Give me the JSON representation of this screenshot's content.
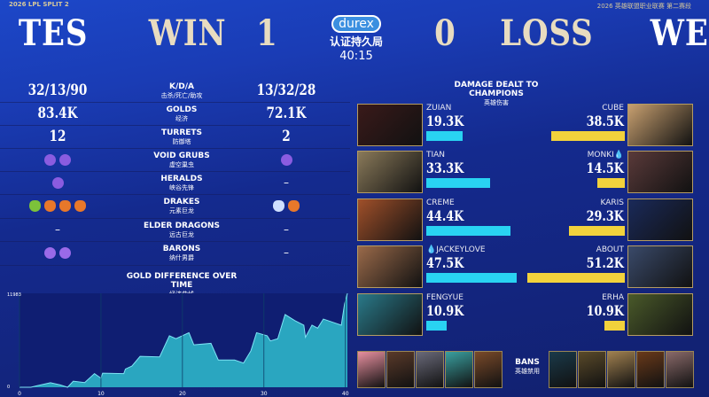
{
  "header": {
    "split": "2026 LPL SPLIT 2",
    "league": "2026 英雄联盟职业联赛 第二赛段",
    "left_team": "TES",
    "left_result": "WIN",
    "left_score": "1",
    "right_score": "0",
    "right_result": "LOSS",
    "right_team": "WE",
    "sponsor": "durex",
    "sponsor_sub": "认证持久局",
    "game_time": "40:15"
  },
  "stats": [
    {
      "label": "K/D/A",
      "sub": "击杀/死亡/助攻",
      "left": "32/13/90",
      "right": "13/32/28"
    },
    {
      "label": "GOLDS",
      "sub": "经济",
      "left": "83.4K",
      "right": "72.1K"
    },
    {
      "label": "TURRETS",
      "sub": "防御塔",
      "left": "12",
      "right": "2"
    },
    {
      "label": "VOID GRUBS",
      "sub": "虚空巢虫",
      "left_icons": [
        "void-grub",
        "void-grub"
      ],
      "right_icons": [
        "void-grub"
      ]
    },
    {
      "label": "HERALDS",
      "sub": "峡谷先锋",
      "left_icons": [
        "herald"
      ],
      "right": "–"
    },
    {
      "label": "DRAKES",
      "sub": "元素巨龙",
      "left_icons": [
        "chemtech-drake",
        "infernal-drake",
        "infernal-drake",
        "infernal-drake"
      ],
      "right_icons": [
        "hextech-drake",
        "infernal-drake"
      ]
    },
    {
      "label": "ELDER DRAGONS",
      "sub": "远古巨龙",
      "left": "–",
      "right": "–"
    },
    {
      "label": "BARONS",
      "sub": "纳什男爵",
      "left_icons": [
        "baron",
        "baron"
      ],
      "right": "–"
    }
  ],
  "icon_colors": {
    "void-grub": "#8a5ce0",
    "herald": "#8a5ce0",
    "baron": "#9a6ae8",
    "chemtech-drake": "#7cc23a",
    "infernal-drake": "#e8782a",
    "hextech-drake": "#cfe0ff"
  },
  "chart_data": {
    "type": "area",
    "title": "GOLD DIFFERENCE OVER TIME",
    "subtitle": "经济曲线",
    "xlim": [
      0,
      40.25
    ],
    "ylim": [
      0,
      11983
    ],
    "xticks": [
      "0",
      "10",
      "20",
      "30",
      "40"
    ],
    "yticks": [
      "0",
      "11983"
    ],
    "grid": false,
    "color": "#2aa6c0",
    "x": [
      0,
      1.4,
      2,
      3.8,
      5,
      5.9,
      6.6,
      8,
      9.2,
      10,
      10.2,
      12.8,
      13,
      13.8,
      14.8,
      17.2,
      18.4,
      19.2,
      20.8,
      21.4,
      23.5,
      24.4,
      26.4,
      27.5,
      28.4,
      29.1,
      30.4,
      30.8,
      31.7,
      32.6,
      33.8,
      34.9,
      35.1,
      35.9,
      36.6,
      37.3,
      39.5,
      39.9,
      40.25
    ],
    "y": [
      0,
      0,
      150,
      580,
      300,
      0,
      770,
      600,
      1740,
      1160,
      1800,
      1740,
      2320,
      2700,
      3940,
      3870,
      6570,
      6190,
      6960,
      5410,
      5600,
      3480,
      3480,
      3090,
      4640,
      6960,
      6570,
      5910,
      6190,
      9280,
      8500,
      7920,
      6380,
      7920,
      7540,
      8700,
      7920,
      10630,
      11983
    ]
  },
  "damage": {
    "title": "DAMAGE DEALT TO CHAMPIONS",
    "sub": "英雄伤害",
    "max": 51.2,
    "left": [
      {
        "name": "ZUIAN",
        "value": "19.3K",
        "num": 19.3
      },
      {
        "name": "TIAN",
        "value": "33.3K",
        "num": 33.3
      },
      {
        "name": "CREME",
        "value": "44.4K",
        "num": 44.4
      },
      {
        "name": "💧JACKEYLOVE",
        "value": "47.5K",
        "num": 47.5
      },
      {
        "name": "FENGYUE",
        "value": "10.9K",
        "num": 10.9
      }
    ],
    "right": [
      {
        "name": "CUBE",
        "value": "38.5K",
        "num": 38.5
      },
      {
        "name": "MONKI💧",
        "value": "14.5K",
        "num": 14.5
      },
      {
        "name": "KARIS",
        "value": "29.3K",
        "num": 29.3
      },
      {
        "name": "ABOUT",
        "value": "51.2K",
        "num": 51.2
      },
      {
        "name": "ERHA",
        "value": "10.9K",
        "num": 10.9
      }
    ],
    "left_color": "#29d3f2",
    "right_color": "#f2d23c"
  },
  "bans": {
    "label": "BANS",
    "sub": "英雄禁用"
  }
}
